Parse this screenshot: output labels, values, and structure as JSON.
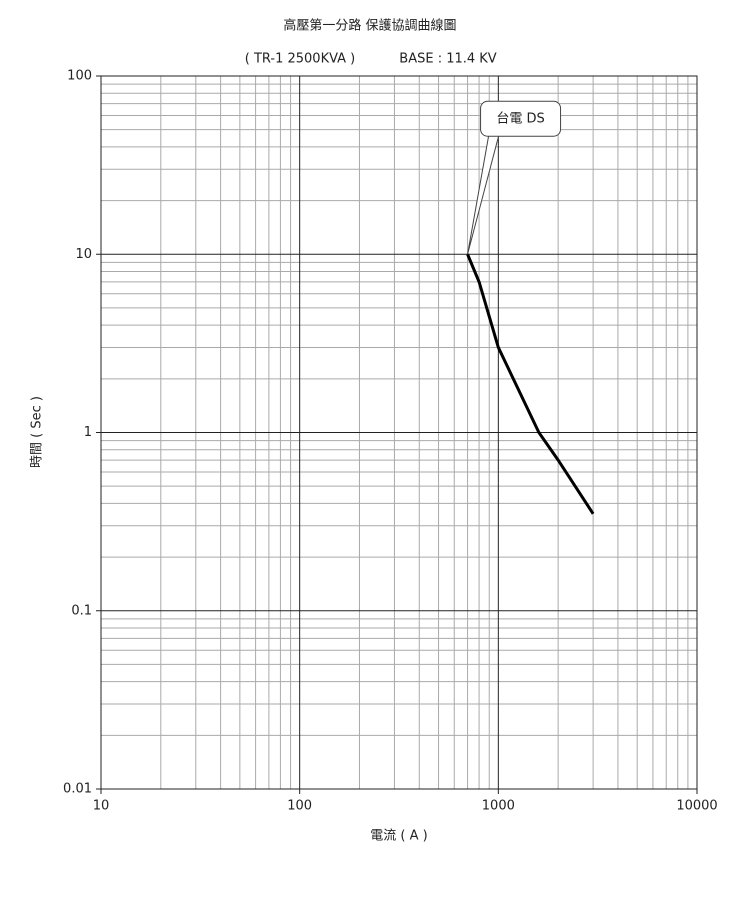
{
  "chart_data": {
    "type": "line",
    "title": "高壓第一分路 保護協調曲線圖",
    "subtitle": [
      "( TR-1  2500KVA )",
      "BASE : 11.4 KV"
    ],
    "x_label": "電流 ( A )",
    "y_label": "時間 ( Sec )",
    "x_scale": "log",
    "y_scale": "log",
    "xlim": [
      10,
      10000
    ],
    "ylim": [
      0.01,
      100
    ],
    "xticks": [
      10,
      100,
      1000,
      10000
    ],
    "yticks": [
      0.01,
      0.1,
      1,
      10,
      100
    ],
    "grid": true,
    "x": [
      700,
      800,
      1000,
      1600,
      2000,
      3000
    ],
    "series": [
      {
        "name": "台電 DS",
        "color": "#000000",
        "values": [
          10,
          7,
          3,
          1,
          0.7,
          0.35
        ]
      }
    ]
  }
}
